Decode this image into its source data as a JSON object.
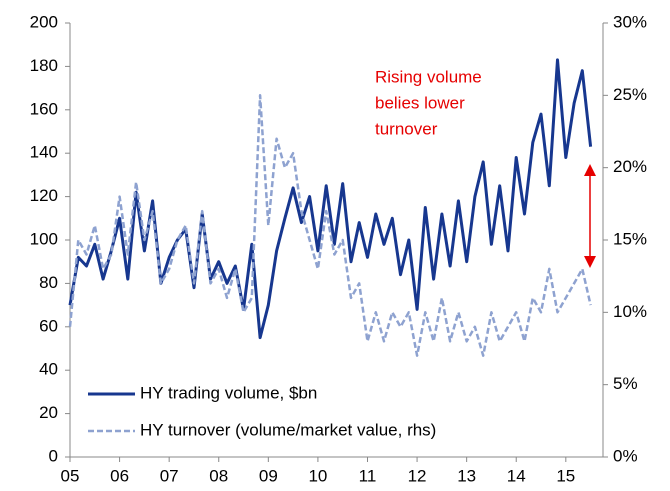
{
  "chart_data": {
    "type": "line",
    "x": [
      2005.0,
      2005.1667,
      2005.3333,
      2005.5,
      2005.6667,
      2005.8333,
      2006.0,
      2006.1667,
      2006.3333,
      2006.5,
      2006.6667,
      2006.8333,
      2007.0,
      2007.1667,
      2007.3333,
      2007.5,
      2007.6667,
      2007.8333,
      2008.0,
      2008.1667,
      2008.3333,
      2008.5,
      2008.6667,
      2008.8333,
      2009.0,
      2009.1667,
      2009.3333,
      2009.5,
      2009.6667,
      2009.8333,
      2010.0,
      2010.1667,
      2010.3333,
      2010.5,
      2010.6667,
      2010.8333,
      2011.0,
      2011.1667,
      2011.3333,
      2011.5,
      2011.6667,
      2011.8333,
      2012.0,
      2012.1667,
      2012.3333,
      2012.5,
      2012.6667,
      2012.8333,
      2013.0,
      2013.1667,
      2013.3333,
      2013.5,
      2013.6667,
      2013.8333,
      2014.0,
      2014.1667,
      2014.3333,
      2014.5,
      2014.6667,
      2014.8333,
      2015.0,
      2015.1667,
      2015.3333,
      2015.5
    ],
    "series": [
      {
        "name": "HY trading volume, $bn",
        "color": "#17378f",
        "dash": false,
        "values": [
          70,
          92,
          88,
          98,
          82,
          95,
          110,
          82,
          122,
          95,
          118,
          80,
          92,
          100,
          105,
          78,
          112,
          82,
          90,
          80,
          88,
          68,
          98,
          55,
          70,
          95,
          110,
          124,
          108,
          120,
          95,
          125,
          98,
          126,
          90,
          108,
          92,
          112,
          98,
          110,
          84,
          100,
          68,
          115,
          82,
          112,
          88,
          118,
          90,
          120,
          136,
          98,
          125,
          95,
          138,
          112,
          145,
          158,
          125,
          183,
          138,
          163,
          178,
          143
        ]
      },
      {
        "name": "HY turnover (volume/market value, rhs)",
        "color": "#8ea2d0",
        "dash": true,
        "axis": "y2",
        "values": [
          9,
          15,
          14,
          16,
          13,
          14,
          18,
          14,
          19,
          15,
          17,
          12,
          13,
          15,
          16,
          12,
          17,
          12,
          13,
          11,
          13,
          10,
          11,
          25,
          16,
          22,
          20,
          21,
          17,
          15,
          13,
          17,
          14,
          15,
          11,
          12,
          8,
          10,
          8,
          10,
          9,
          10,
          7,
          10,
          8,
          11,
          8,
          10,
          8,
          9,
          7,
          10,
          8,
          9,
          10,
          8,
          11,
          10,
          13,
          10,
          11,
          12,
          13,
          10.5
        ]
      }
    ],
    "xlim": [
      2005,
      2015.75
    ],
    "xticks": [
      {
        "value": 2005,
        "label": "05"
      },
      {
        "value": 2006,
        "label": "06"
      },
      {
        "value": 2007,
        "label": "07"
      },
      {
        "value": 2008,
        "label": "08"
      },
      {
        "value": 2009,
        "label": "09"
      },
      {
        "value": 2010,
        "label": "10"
      },
      {
        "value": 2011,
        "label": "11"
      },
      {
        "value": 2012,
        "label": "12"
      },
      {
        "value": 2013,
        "label": "13"
      },
      {
        "value": 2014,
        "label": "14"
      },
      {
        "value": 2015,
        "label": "15"
      }
    ],
    "ylim": [
      0,
      200
    ],
    "yticks": [
      0,
      20,
      40,
      60,
      80,
      100,
      120,
      140,
      160,
      180,
      200
    ],
    "y2lim": [
      0,
      30
    ],
    "y2ticks": [
      {
        "value": 0,
        "label": "0%"
      },
      {
        "value": 5,
        "label": "5%"
      },
      {
        "value": 10,
        "label": "10%"
      },
      {
        "value": 15,
        "label": "15%"
      },
      {
        "value": 20,
        "label": "20%"
      },
      {
        "value": 25,
        "label": "25%"
      },
      {
        "value": 30,
        "label": "30%"
      }
    ],
    "annotation": [
      "Rising volume",
      "belies lower",
      "turnover"
    ],
    "legend": "lower left",
    "grid": false
  }
}
